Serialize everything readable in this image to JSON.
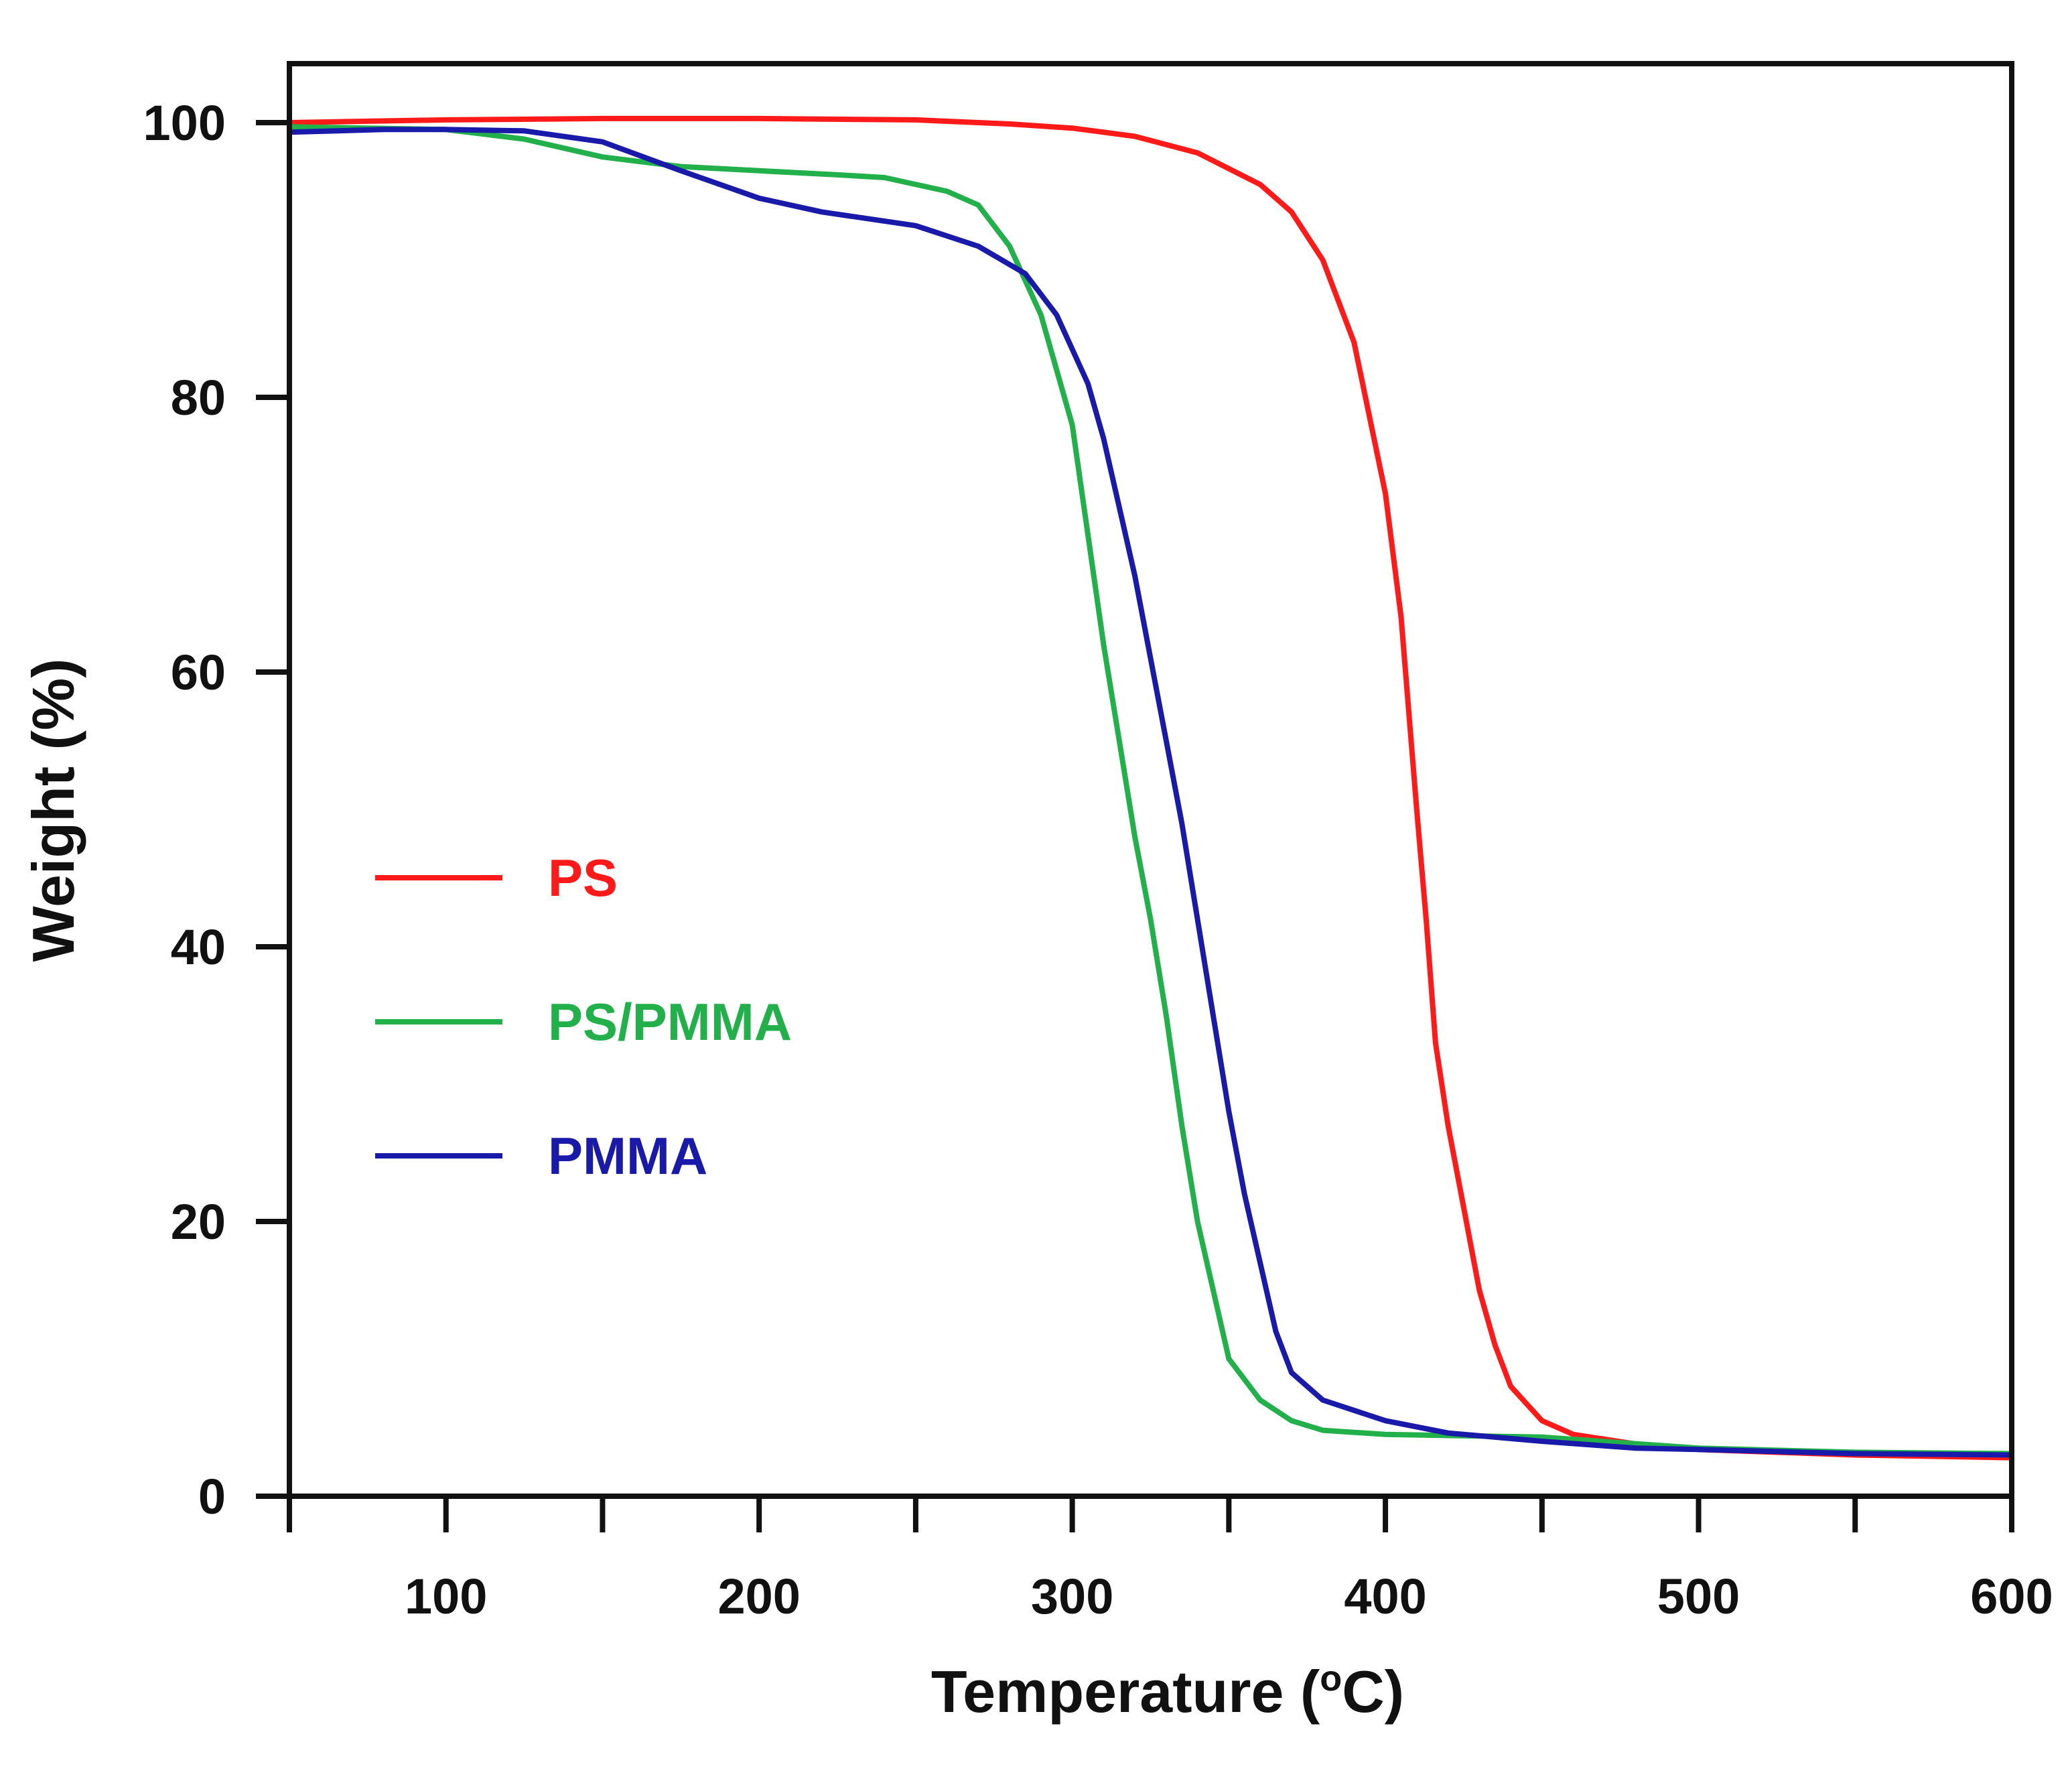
{
  "chart_data": {
    "type": "line",
    "title": "",
    "xlabel": "Temperature (",
    "xlabel_sup": "o",
    "xlabel_tail": "C)",
    "ylabel": "Weight (%)",
    "xlim": [
      50,
      600
    ],
    "ylim": [
      0,
      103
    ],
    "x_ticks": [
      50,
      100,
      150,
      200,
      250,
      300,
      350,
      400,
      450,
      500,
      550,
      600
    ],
    "x_tick_labels": [
      {
        "value": 100,
        "label": "100"
      },
      {
        "value": 200,
        "label": "200"
      },
      {
        "value": 300,
        "label": "300"
      },
      {
        "value": 400,
        "label": "400"
      },
      {
        "value": 500,
        "label": "500"
      },
      {
        "value": 600,
        "label": "600"
      }
    ],
    "y_ticks": [
      {
        "value": 0,
        "label": "0"
      },
      {
        "value": 20,
        "label": "20"
      },
      {
        "value": 40,
        "label": "40"
      },
      {
        "value": 60,
        "label": "60"
      },
      {
        "value": 80,
        "label": "80"
      },
      {
        "value": 100,
        "label": "100"
      }
    ],
    "grid": false,
    "legend_position": "center-left",
    "series": [
      {
        "name": "PS",
        "color": "#ff1a1a",
        "points": [
          [
            50,
            100
          ],
          [
            100,
            100.2
          ],
          [
            150,
            100.3
          ],
          [
            200,
            100.3
          ],
          [
            250,
            100.2
          ],
          [
            280,
            99.9
          ],
          [
            300,
            99.6
          ],
          [
            320,
            99
          ],
          [
            340,
            97.8
          ],
          [
            360,
            95.5
          ],
          [
            370,
            93.5
          ],
          [
            380,
            90
          ],
          [
            390,
            84
          ],
          [
            400,
            73
          ],
          [
            405,
            64
          ],
          [
            410,
            50
          ],
          [
            413,
            42
          ],
          [
            416,
            33
          ],
          [
            420,
            27
          ],
          [
            425,
            21
          ],
          [
            430,
            15
          ],
          [
            435,
            11
          ],
          [
            440,
            8
          ],
          [
            450,
            5.5
          ],
          [
            460,
            4.5
          ],
          [
            480,
            3.8
          ],
          [
            500,
            3.4
          ],
          [
            550,
            3.0
          ],
          [
            600,
            2.8
          ]
        ]
      },
      {
        "name": "PS/PMMA",
        "color": "#22b04b",
        "points": [
          [
            50,
            99.7
          ],
          [
            100,
            99.5
          ],
          [
            125,
            98.8
          ],
          [
            150,
            97.5
          ],
          [
            175,
            96.8
          ],
          [
            200,
            96.5
          ],
          [
            225,
            96.2
          ],
          [
            240,
            96
          ],
          [
            260,
            95
          ],
          [
            270,
            94
          ],
          [
            280,
            91
          ],
          [
            290,
            86
          ],
          [
            300,
            78
          ],
          [
            305,
            70
          ],
          [
            310,
            62
          ],
          [
            315,
            55
          ],
          [
            320,
            48
          ],
          [
            325,
            42
          ],
          [
            330,
            35
          ],
          [
            335,
            27
          ],
          [
            340,
            20
          ],
          [
            345,
            15
          ],
          [
            350,
            10
          ],
          [
            360,
            7
          ],
          [
            370,
            5.5
          ],
          [
            380,
            4.8
          ],
          [
            400,
            4.5
          ],
          [
            450,
            4.3
          ],
          [
            500,
            3.5
          ],
          [
            550,
            3.2
          ],
          [
            600,
            3.1
          ]
        ]
      },
      {
        "name": "PMMA",
        "color": "#1a1aaa",
        "points": [
          [
            50,
            99.3
          ],
          [
            80,
            99.5
          ],
          [
            100,
            99.5
          ],
          [
            125,
            99.4
          ],
          [
            150,
            98.6
          ],
          [
            175,
            96.5
          ],
          [
            200,
            94.5
          ],
          [
            220,
            93.5
          ],
          [
            250,
            92.5
          ],
          [
            270,
            91
          ],
          [
            285,
            89
          ],
          [
            295,
            86
          ],
          [
            305,
            81
          ],
          [
            310,
            77
          ],
          [
            315,
            72
          ],
          [
            320,
            67
          ],
          [
            325,
            61
          ],
          [
            330,
            55
          ],
          [
            335,
            49
          ],
          [
            340,
            42
          ],
          [
            345,
            35
          ],
          [
            350,
            28
          ],
          [
            355,
            22
          ],
          [
            360,
            17
          ],
          [
            365,
            12
          ],
          [
            370,
            9
          ],
          [
            380,
            7
          ],
          [
            400,
            5.5
          ],
          [
            420,
            4.6
          ],
          [
            450,
            4
          ],
          [
            480,
            3.5
          ],
          [
            500,
            3.4
          ],
          [
            550,
            3.1
          ],
          [
            600,
            3.0
          ]
        ]
      }
    ]
  }
}
